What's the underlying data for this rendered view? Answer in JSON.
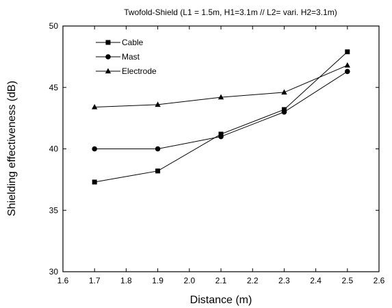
{
  "chart_data": {
    "type": "line",
    "title": "Twofold-Shield (L1 = 1.5m, H1=3.1m // L2= vari.  H2=3.1m)",
    "xlabel": "Distance (m)",
    "ylabel": "Shielding effectiveness (dB)",
    "xlim": [
      1.6,
      2.6
    ],
    "ylim": [
      30,
      50
    ],
    "xticks": [
      "1.6",
      "1.7",
      "1.8",
      "1.9",
      "2.0",
      "2.1",
      "2.2",
      "2.3",
      "2.4",
      "2.5",
      "2.6"
    ],
    "yticks": [
      "30",
      "35",
      "40",
      "45",
      "50"
    ],
    "grid": false,
    "legend_position": "top-left",
    "x": [
      1.7,
      1.9,
      2.1,
      2.3,
      2.5
    ],
    "series": [
      {
        "name": "Cable",
        "marker": "square",
        "values": [
          37.3,
          38.2,
          41.2,
          43.2,
          47.9
        ]
      },
      {
        "name": "Mast",
        "marker": "circle",
        "values": [
          40.0,
          40.0,
          41.0,
          43.0,
          46.3
        ]
      },
      {
        "name": "Electrode",
        "marker": "triangle",
        "values": [
          43.4,
          43.6,
          44.2,
          44.6,
          46.8
        ]
      }
    ],
    "line_color": "#000000"
  }
}
